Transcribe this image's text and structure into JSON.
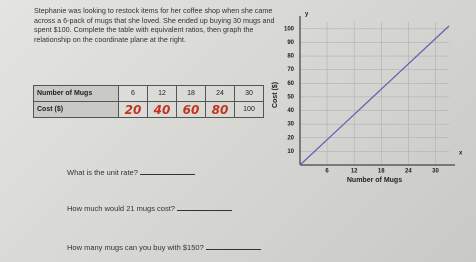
{
  "intro": "Stephanie was looking to restock items for her coffee shop when she came across a 6-pack of mugs that she loved. She ended up buying 30 mugs and spent $100. Complete the table with equivalent ratios, then graph the relationship on the coordinate plane at the right.",
  "table": {
    "rows": [
      [
        "Number of Mugs",
        "6",
        "12",
        "18",
        "24",
        "30"
      ],
      [
        "Cost ($)",
        "20",
        "40",
        "60",
        "80",
        "100"
      ]
    ]
  },
  "graph": {
    "x_label": "Number of Mugs",
    "y_label": "Cost ($)",
    "x_axis": "x",
    "y_axis": "y",
    "xlim": [
      0,
      33
    ],
    "ylim": [
      0,
      105
    ],
    "xticks": [
      6,
      12,
      18,
      24,
      30
    ],
    "yticks": [
      10,
      20,
      30,
      40,
      50,
      60,
      70,
      80,
      90,
      100
    ]
  },
  "questions": [
    "What is the unit rate?",
    "How much would 21 mugs cost?",
    "How many mugs can you buy with $150?"
  ]
}
